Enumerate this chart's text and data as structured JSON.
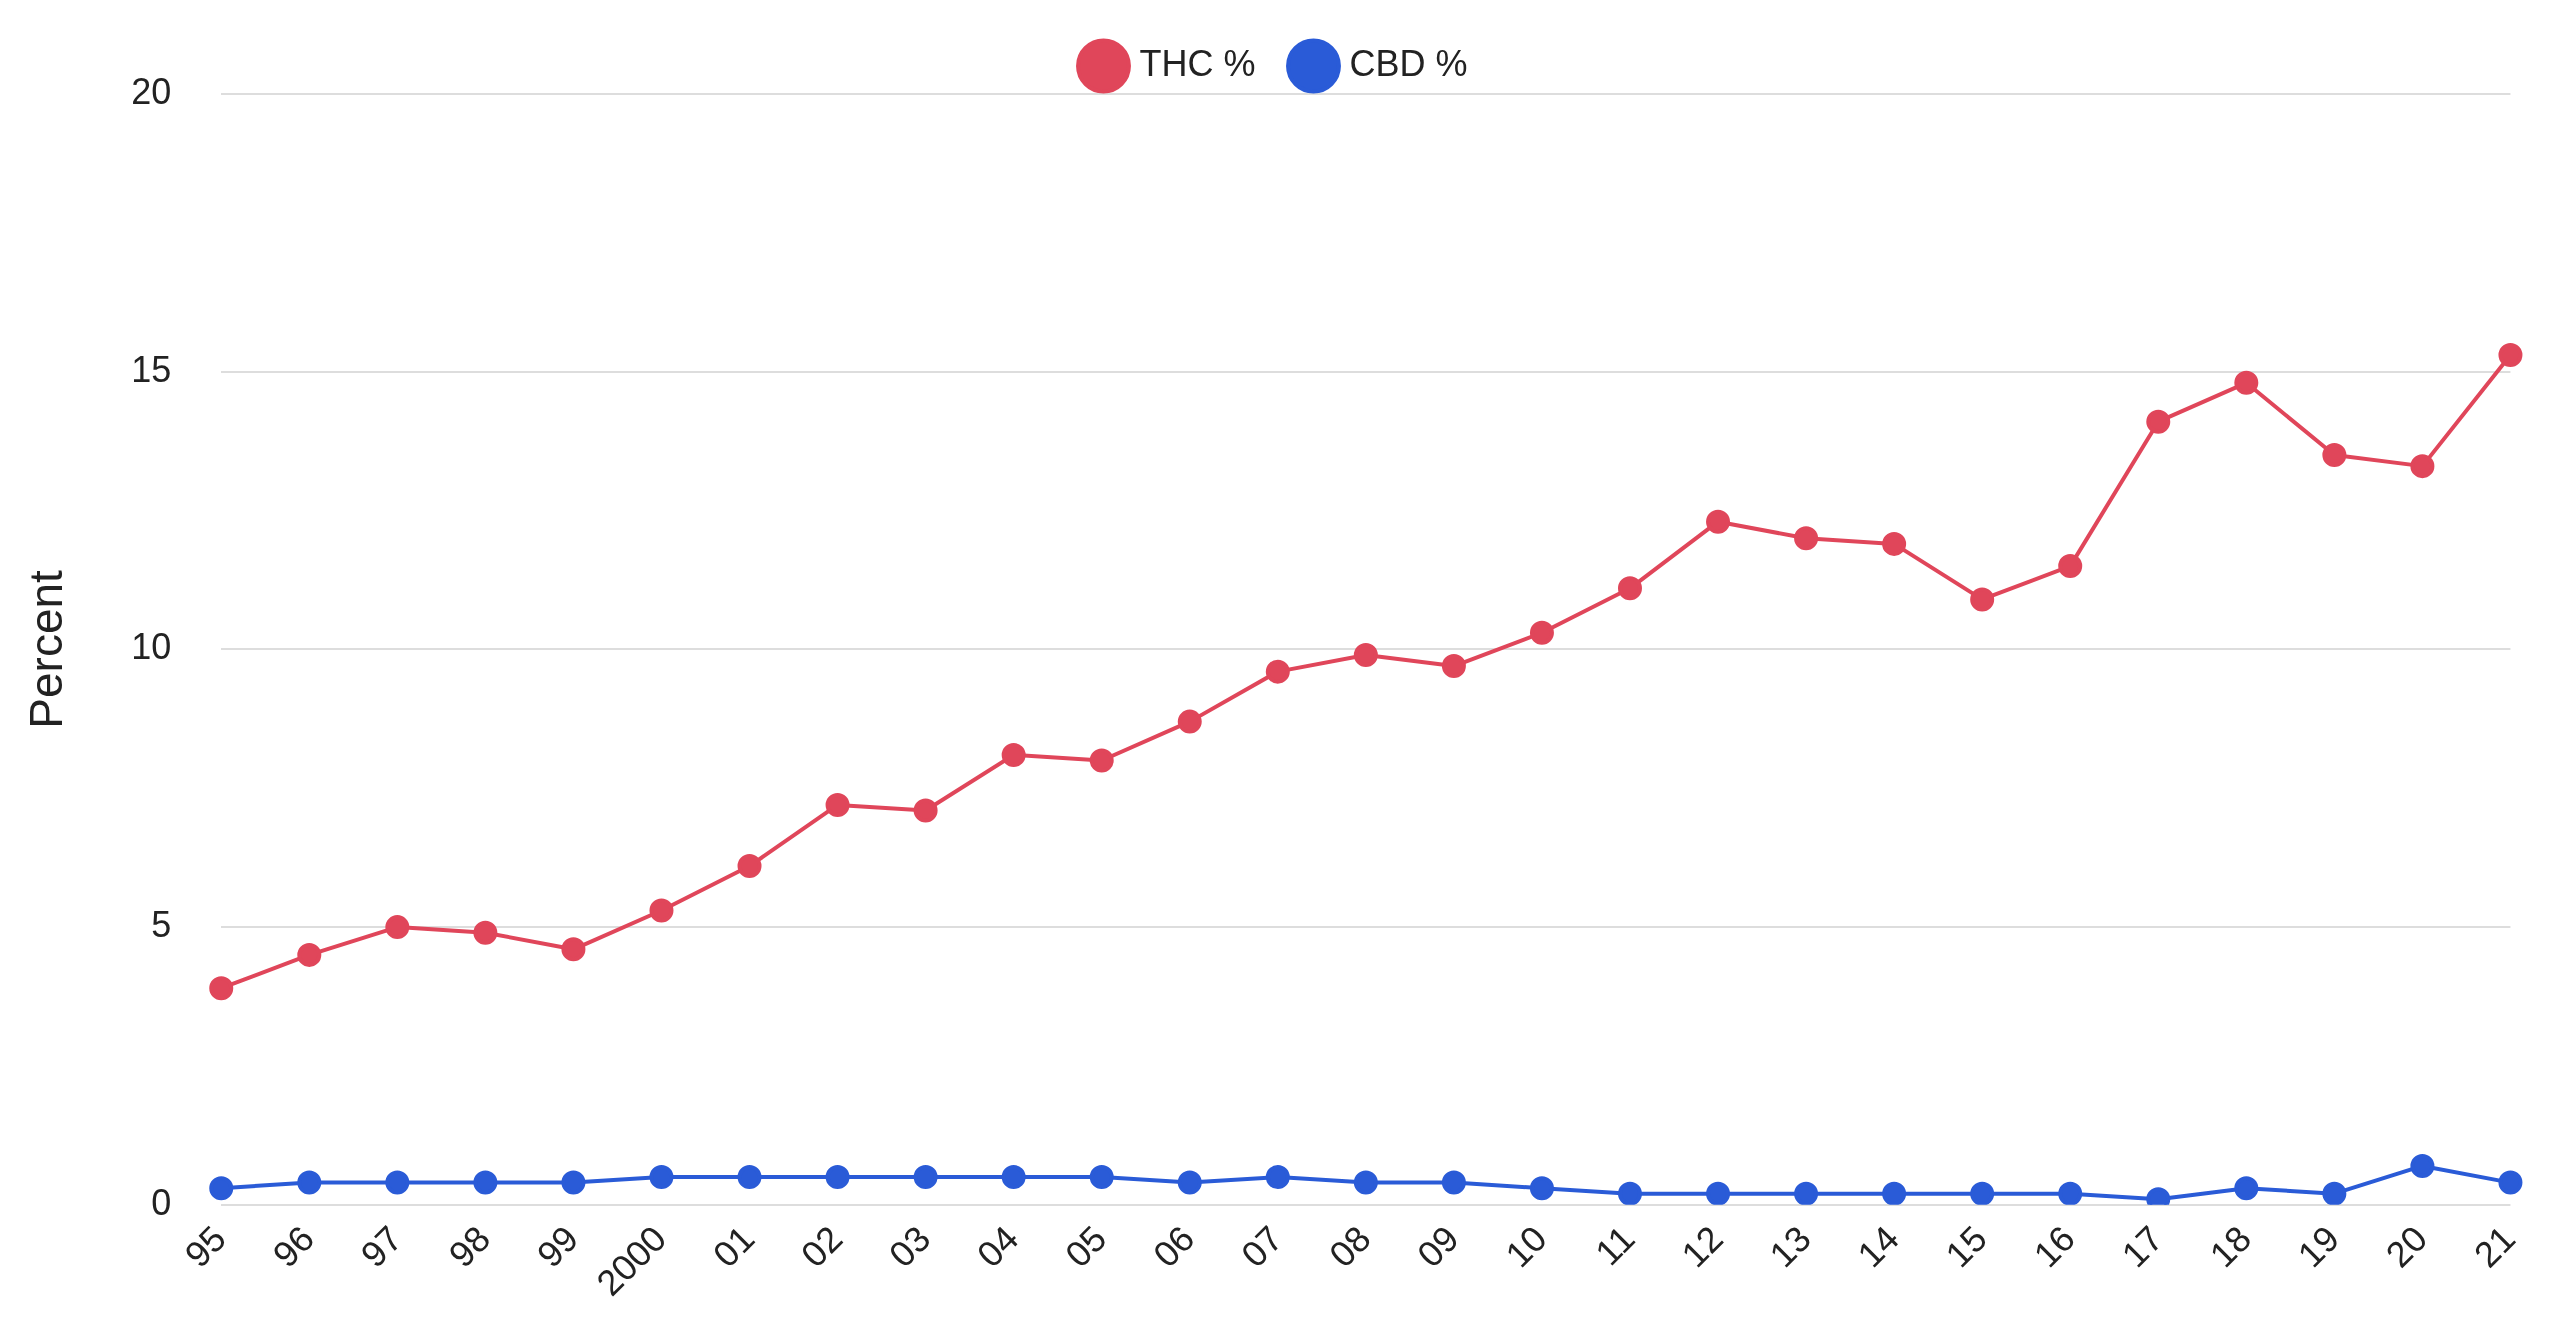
{
  "chart_data": {
    "type": "line",
    "ylabel": "Percent",
    "categories": [
      "95",
      "96",
      "97",
      "98",
      "99",
      "2000",
      "01",
      "02",
      "03",
      "04",
      "05",
      "06",
      "07",
      "08",
      "09",
      "10",
      "11",
      "12",
      "13",
      "14",
      "15",
      "16",
      "17",
      "18",
      "19",
      "20",
      "21"
    ],
    "series": [
      {
        "name": "THC %",
        "color": "#e0465a",
        "values": [
          3.9,
          4.5,
          5.0,
          4.9,
          4.6,
          5.3,
          6.1,
          7.2,
          7.1,
          8.1,
          8.0,
          8.7,
          9.6,
          9.9,
          9.7,
          10.3,
          11.1,
          12.3,
          12.0,
          11.9,
          10.9,
          11.5,
          14.1,
          14.8,
          13.5,
          13.3,
          15.3
        ]
      },
      {
        "name": "CBD %",
        "color": "#2a5bd7",
        "values": [
          0.3,
          0.4,
          0.4,
          0.4,
          0.4,
          0.5,
          0.5,
          0.5,
          0.5,
          0.5,
          0.5,
          0.4,
          0.5,
          0.4,
          0.4,
          0.3,
          0.2,
          0.2,
          0.2,
          0.2,
          0.2,
          0.2,
          0.1,
          0.3,
          0.2,
          0.7,
          0.4
        ]
      }
    ],
    "ylim": [
      0,
      20
    ],
    "yticks": [
      0,
      5,
      10,
      15,
      20
    ],
    "grid": "y",
    "legend": "top",
    "marker": "circle",
    "line_style": "solid"
  }
}
